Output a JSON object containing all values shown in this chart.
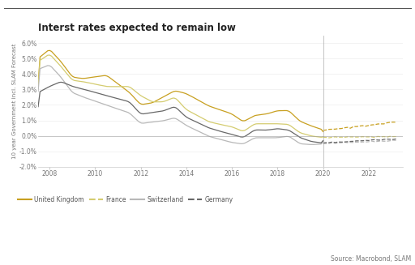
{
  "title": "Interst rates expected to remain low",
  "ylabel": "10 year Government incl. SLAM Forecast",
  "source_text": "Source: Macrobond, SLAM",
  "ylim": [
    -2.0,
    6.5
  ],
  "yticks": [
    -2.0,
    -1.0,
    0.0,
    1.0,
    2.0,
    3.0,
    4.0,
    5.0,
    6.0
  ],
  "ytick_labels": [
    "-2.0%",
    "-1.0%",
    "0.0%",
    "1.0%",
    "2.0%",
    "3.0%",
    "4.0%",
    "5.0%",
    "6.0%"
  ],
  "xlim_start": 2007.5,
  "xlim_end": 2023.5,
  "xticks": [
    2008,
    2010,
    2012,
    2014,
    2016,
    2018,
    2020,
    2022
  ],
  "colors": {
    "uk": "#c8a020",
    "france": "#d4cc70",
    "switzerland": "#b8b8b8",
    "germany": "#686868"
  },
  "forecast_start_year": 2020.0,
  "background_color": "#ffffff",
  "legend_labels": [
    "United Kingdom",
    "France",
    "Switzerland",
    "Germany"
  ]
}
